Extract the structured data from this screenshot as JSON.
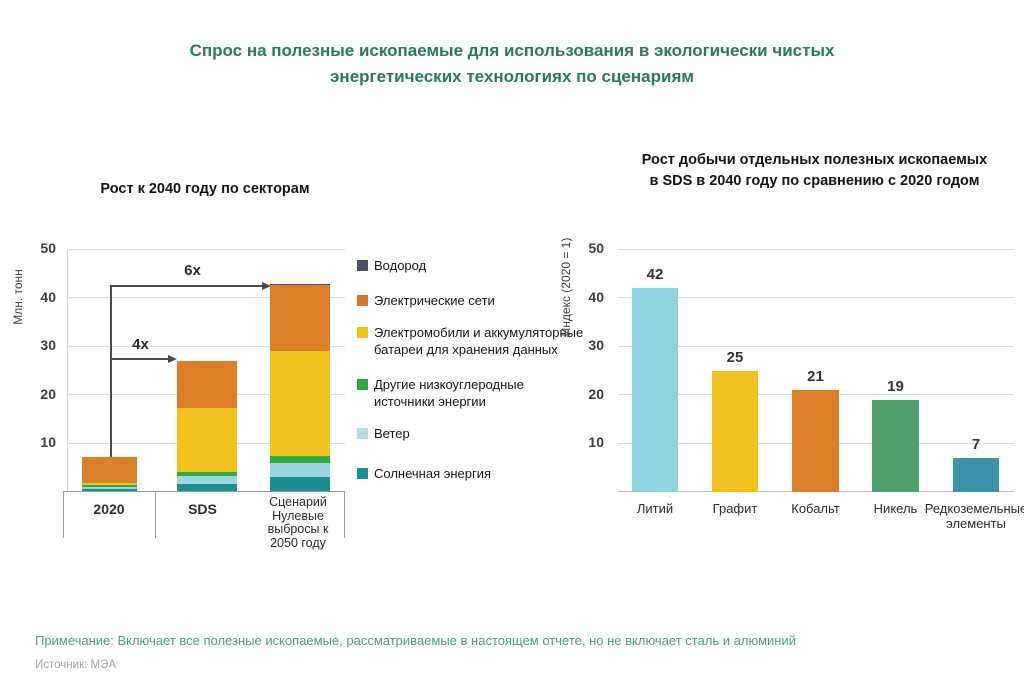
{
  "page": {
    "title_line1": "Спрос на полезные ископаемые для использования в экологически чистых",
    "title_line2": "энергетических технологиях по сценариям",
    "note": "Примечание: Включает все полезные ископаемые, рассматриваемые в настоящем отчете, но не включает сталь и алюминий",
    "source": "Источник: МЭА"
  },
  "colors": {
    "title_green": "#2a7a56",
    "note_green": "#4f9e78",
    "source_gray": "#a3a3a3",
    "gridline": "#dcdcdc",
    "axis_text": "#3c3c3c",
    "annotation": "#4a4a4a"
  },
  "chart_data": [
    {
      "type": "bar",
      "stacked": true,
      "title": "Рост к 2040 году по секторам",
      "ylabel": "Млн. тонн",
      "ylim": [
        0,
        50
      ],
      "yticks": [
        10,
        20,
        30,
        40,
        50
      ],
      "grid": true,
      "legend_position": "right",
      "categories": [
        "2020",
        "SDS",
        "Сценарий Нулевые выбросы к 2050 году"
      ],
      "series": [
        {
          "name": "Солнечная энергия",
          "color": "#1b9093",
          "values": [
            0.6,
            1.7,
            3.1
          ]
        },
        {
          "name": "Ветер",
          "color": "#9dd5de",
          "values": [
            0.5,
            1.5,
            2.9
          ]
        },
        {
          "name": "Другие низкоуглеродные источники энергии",
          "color": "#2fad43",
          "values": [
            0.4,
            1.0,
            1.4
          ]
        },
        {
          "name": "Электромобили и аккумуляторные батареи для хранения данных",
          "color": "#f2c31e",
          "values": [
            0.4,
            13.0,
            21.6
          ]
        },
        {
          "name": "Электрические сети",
          "color": "#dd7e28",
          "values": [
            5.4,
            9.8,
            13.7
          ]
        },
        {
          "name": "Водород",
          "color": "#4a4f66",
          "values": [
            0,
            0,
            0.1
          ]
        }
      ],
      "totals": [
        7.3,
        27.0,
        42.8
      ],
      "annotations": [
        {
          "label": "4x",
          "from": "2020",
          "to": "SDS"
        },
        {
          "label": "6x",
          "from": "2020",
          "to": "Сценарий Нулевые выбросы к 2050 году"
        }
      ],
      "legend": [
        {
          "label": "Водород",
          "color": "#4a4f66"
        },
        {
          "label": "Электрические сети",
          "color": "#d4772a"
        },
        {
          "label": "Электромобили и аккумуляторные батареи для хранения данных",
          "color": "#eec21f"
        },
        {
          "label": "Другие низкоуглеродные источники энергии",
          "color": "#2ca83e"
        },
        {
          "label": "Ветер",
          "color": "#b0dce0"
        },
        {
          "label": "Солнечная энергия",
          "color": "#1d8f92"
        }
      ]
    },
    {
      "type": "bar",
      "title": "Рост добычи отдельных полезных ископаемых в SDS в 2040 году по сравнению с 2020 годом",
      "title_line1": "Рост добычи отдельных полезных ископаемых",
      "title_line2": "в SDS в 2040 году по сравнению с 2020 годом",
      "ylabel": "Индекс (2020 = 1)",
      "ylim": [
        0,
        50
      ],
      "yticks": [
        10,
        20,
        30,
        40,
        50
      ],
      "grid": true,
      "categories": [
        "Литий",
        "Графит",
        "Кобальт",
        "Никель",
        "Редкоземельные элементы"
      ],
      "values": [
        42,
        25,
        21,
        19,
        7
      ],
      "bar_colors": [
        "#8ed3e0",
        "#f2c31e",
        "#dd7e28",
        "#4ea16c",
        "#3e93a8"
      ]
    }
  ]
}
